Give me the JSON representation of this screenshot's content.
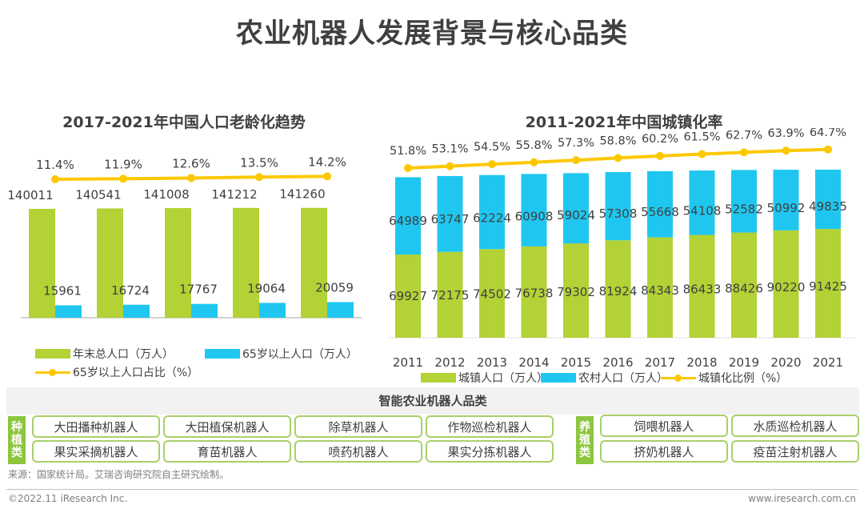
{
  "page": {
    "title": "农业机器人发展背景与核心品类",
    "source": "来源：国家统计局。艾瑞咨询研究院自主研究绘制。",
    "copyright": "©2022.11 iResearch Inc.",
    "website": "www.iresearch.com.cn"
  },
  "colors": {
    "green": "#b2d235",
    "blue": "#1fc7f0",
    "yellow": "#fcc800",
    "tag_green": "#8dc63f",
    "box_border": "#a8d06a"
  },
  "chart_data": [
    {
      "type": "bar",
      "title": "2017-2021年中国人口老龄化趋势",
      "categories": [
        "2017",
        "2018",
        "2019",
        "2020",
        "2021"
      ],
      "series": [
        {
          "name": "年末总人口（万人）",
          "kind": "bar",
          "values": [
            140011,
            140541,
            141008,
            141212,
            141260
          ]
        },
        {
          "name": "65岁以上人口（万人）",
          "kind": "bar",
          "values": [
            15961,
            16724,
            17767,
            19064,
            20059
          ]
        },
        {
          "name": "65岁以上人口占比（%）",
          "kind": "line",
          "values": [
            11.4,
            11.9,
            12.6,
            13.5,
            14.2
          ],
          "labels": [
            "11.4%",
            "11.9%",
            "12.6%",
            "13.5%",
            "14.2%"
          ]
        }
      ],
      "legend": [
        "年末总人口（万人）",
        "65岁以上人口（万人）",
        "65岁以上人口占比（%）"
      ],
      "legend_position": "bottom",
      "xlabel": "",
      "ylabel": "",
      "grid": false
    },
    {
      "type": "bar",
      "stacked": true,
      "title": "2011-2021年中国城镇化率",
      "categories": [
        "2011",
        "2012",
        "2013",
        "2014",
        "2015",
        "2016",
        "2017",
        "2018",
        "2019",
        "2020",
        "2021"
      ],
      "series": [
        {
          "name": "城镇人口（万人）",
          "kind": "bar",
          "values": [
            69927,
            72175,
            74502,
            76738,
            79302,
            81924,
            84343,
            86433,
            88426,
            90220,
            91425
          ]
        },
        {
          "name": "农村人口（万人）",
          "kind": "bar",
          "values": [
            64989,
            63747,
            62224,
            60908,
            59024,
            57308,
            55668,
            54108,
            52582,
            50992,
            49835
          ]
        },
        {
          "name": "城镇化比例（%）",
          "kind": "line",
          "values": [
            51.8,
            53.1,
            54.5,
            55.8,
            57.3,
            58.8,
            60.2,
            61.5,
            62.7,
            63.9,
            64.7
          ],
          "labels": [
            "51.8%",
            "53.1%",
            "54.5%",
            "55.8%",
            "57.3%",
            "58.8%",
            "60.2%",
            "61.5%",
            "62.7%",
            "63.9%",
            "64.7%"
          ]
        }
      ],
      "legend": [
        "城镇人口（万人）",
        "农村人口（万人）",
        "城镇化比例（%）"
      ],
      "legend_position": "bottom",
      "xlabel": "",
      "ylabel": "",
      "grid": false
    }
  ],
  "categories_panel": {
    "title": "智能农业机器人品类",
    "groups": [
      {
        "tag": [
          "种",
          "植",
          "类"
        ],
        "items": [
          "大田播种机器人",
          "大田植保机器人",
          "除草机器人",
          "作物巡检机器人",
          "果实采摘机器人",
          "育苗机器人",
          "喷药机器人",
          "果实分拣机器人"
        ]
      },
      {
        "tag": [
          "养",
          "殖",
          "类"
        ],
        "items": [
          "饲喂机器人",
          "水质巡检机器人",
          "挤奶机器人",
          "疫苗注射机器人"
        ]
      }
    ]
  }
}
